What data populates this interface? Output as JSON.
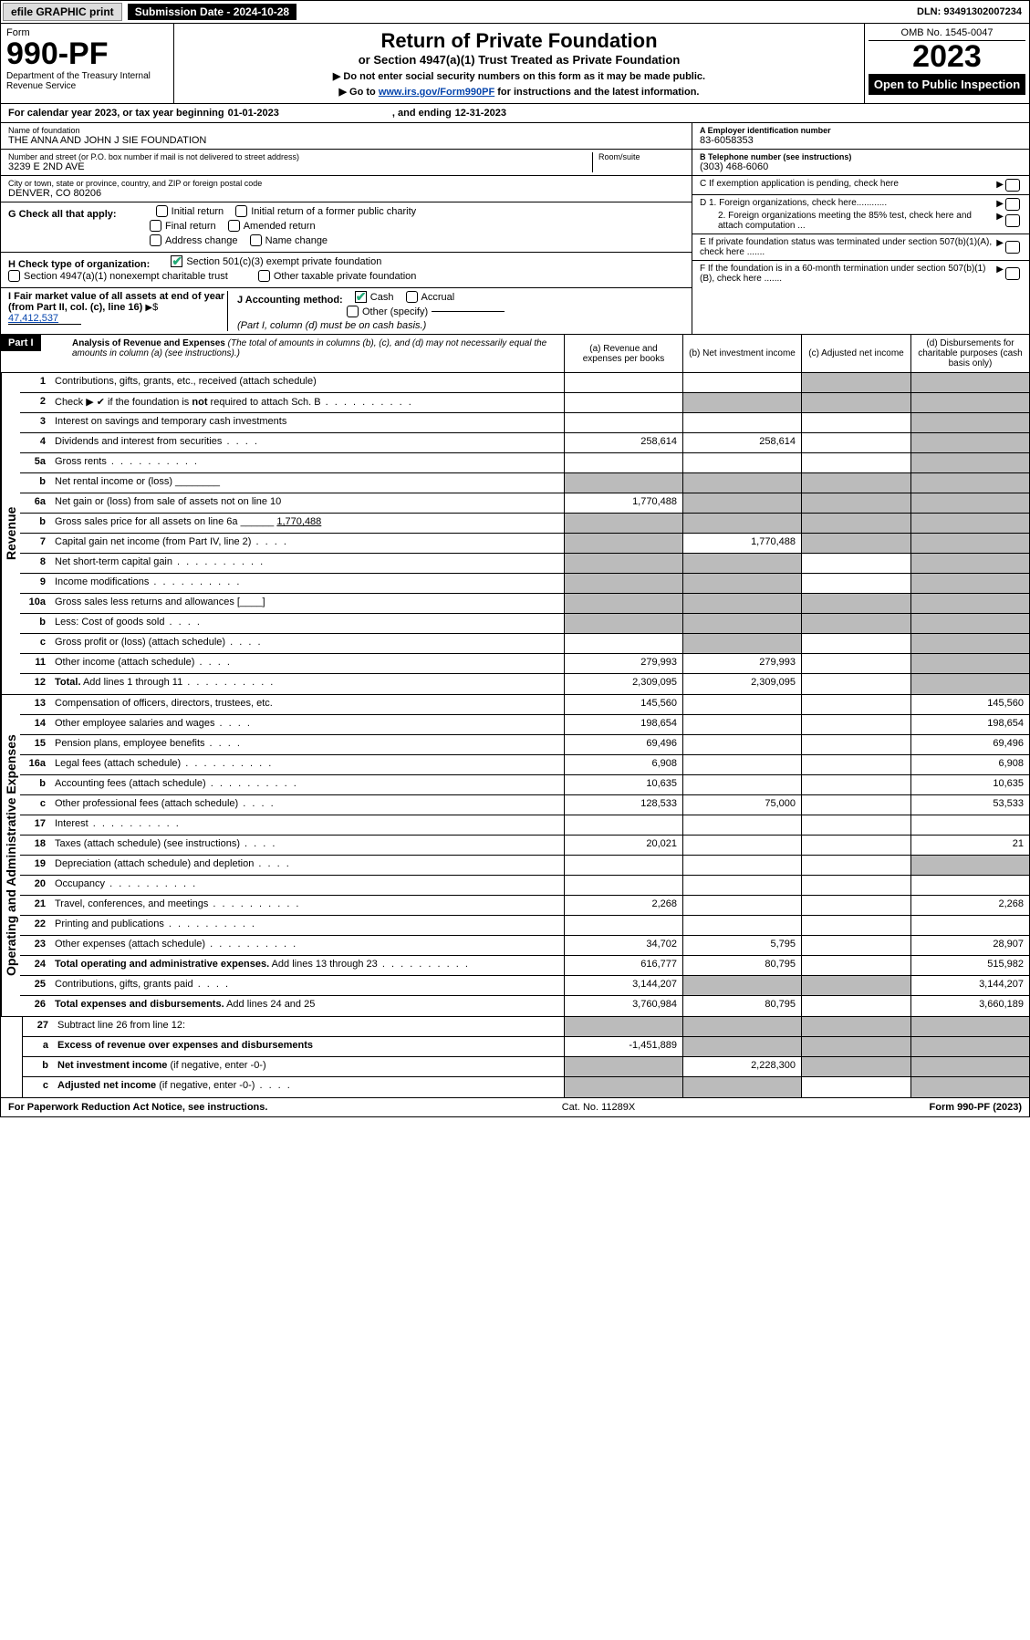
{
  "topbar": {
    "efile": "efile GRAPHIC print",
    "submission": "Submission Date - 2024-10-28",
    "dln": "DLN: 93491302007234"
  },
  "header": {
    "form": "Form",
    "number": "990-PF",
    "dept": "Department of the Treasury\nInternal Revenue Service",
    "title": "Return of Private Foundation",
    "subtitle1": "or Section 4947(a)(1) Trust Treated as Private Foundation",
    "subtitle2": "▶ Do not enter social security numbers on this form as it may be made public.",
    "subtitle3_pre": "▶ Go to ",
    "subtitle3_link": "www.irs.gov/Form990PF",
    "subtitle3_post": " for instructions and the latest information.",
    "omb": "OMB No. 1545-0047",
    "year": "2023",
    "open": "Open to Public Inspection"
  },
  "cal": {
    "pre": "For calendar year 2023, or tax year beginning ",
    "begin": "01-01-2023",
    "mid": ", and ending ",
    "end": "12-31-2023"
  },
  "foundation": {
    "name_lbl": "Name of foundation",
    "name": "THE ANNA AND JOHN J SIE FOUNDATION",
    "addr_lbl": "Number and street (or P.O. box number if mail is not delivered to street address)",
    "addr": "3239 E 2ND AVE",
    "room_lbl": "Room/suite",
    "city_lbl": "City or town, state or province, country, and ZIP or foreign postal code",
    "city": "DENVER, CO  80206",
    "ein_lbl": "A Employer identification number",
    "ein": "83-6058353",
    "tel_lbl": "B Telephone number (see instructions)",
    "tel": "(303) 468-6060",
    "c_lbl": "C If exemption application is pending, check here",
    "d1": "D 1. Foreign organizations, check here............",
    "d2": "2. Foreign organizations meeting the 85% test, check here and attach computation ...",
    "e": "E  If private foundation status was terminated under section 507(b)(1)(A), check here .......",
    "f": "F  If the foundation is in a 60-month termination under section 507(b)(1)(B), check here .......",
    "g_lbl": "G Check all that apply:",
    "g_opts": [
      "Initial return",
      "Initial return of a former public charity",
      "Final return",
      "Amended return",
      "Address change",
      "Name change"
    ],
    "h_lbl": "H Check type of organization:",
    "h1": "Section 501(c)(3) exempt private foundation",
    "h2": "Section 4947(a)(1) nonexempt charitable trust",
    "h3": "Other taxable private foundation",
    "i_lbl": "I Fair market value of all assets at end of year (from Part II, col. (c), line 16)",
    "i_val": "47,412,537",
    "j_lbl": "J Accounting method:",
    "j1": "Cash",
    "j2": "Accrual",
    "j3": "Other (specify)",
    "j_note": "(Part I, column (d) must be on cash basis.)"
  },
  "part1": {
    "label": "Part I",
    "title": "Analysis of Revenue and Expenses",
    "note": "(The total of amounts in columns (b), (c), and (d) may not necessarily equal the amounts in column (a) (see instructions).)",
    "cols": {
      "a": "(a)  Revenue and expenses per books",
      "b": "(b)  Net investment income",
      "c": "(c)  Adjusted net income",
      "d": "(d)  Disbursements for charitable purposes (cash basis only)"
    }
  },
  "sections": {
    "revenue": "Revenue",
    "expenses": "Operating and Administrative Expenses"
  },
  "rows": [
    {
      "n": "1",
      "t": "Contributions, gifts, grants, etc., received (attach schedule)",
      "a": "",
      "b": "",
      "c_grey": true,
      "d_grey": true
    },
    {
      "n": "2",
      "t": "Check ▶ ✔ if the foundation is <b>not</b> required to attach Sch. B",
      "dots": true,
      "a": "",
      "b_grey": true,
      "c_grey": true,
      "d_grey": true
    },
    {
      "n": "3",
      "t": "Interest on savings and temporary cash investments",
      "a": "",
      "b": "",
      "c": "",
      "d_grey": true
    },
    {
      "n": "4",
      "t": "Dividends and interest from securities",
      "dots": "s",
      "a": "258,614",
      "b": "258,614",
      "c": "",
      "d_grey": true
    },
    {
      "n": "5a",
      "t": "Gross rents",
      "dots": true,
      "a": "",
      "b": "",
      "c": "",
      "d_grey": true
    },
    {
      "n": "b",
      "t": "Net rental income or (loss) ________",
      "a_grey": true,
      "b_grey": true,
      "c_grey": true,
      "d_grey": true
    },
    {
      "n": "6a",
      "t": "Net gain or (loss) from sale of assets not on line 10",
      "a": "1,770,488",
      "b_grey": true,
      "c_grey": true,
      "d_grey": true
    },
    {
      "n": "b",
      "t": "Gross sales price for all assets on line 6a ______ <u>1,770,488</u>",
      "a_grey": true,
      "b_grey": true,
      "c_grey": true,
      "d_grey": true
    },
    {
      "n": "7",
      "t": "Capital gain net income (from Part IV, line 2)",
      "dots": "s",
      "a_grey": true,
      "b": "1,770,488",
      "c_grey": true,
      "d_grey": true
    },
    {
      "n": "8",
      "t": "Net short-term capital gain",
      "dots": true,
      "a_grey": true,
      "b_grey": true,
      "c": "",
      "d_grey": true
    },
    {
      "n": "9",
      "t": "Income modifications",
      "dots": true,
      "a_grey": true,
      "b_grey": true,
      "c": "",
      "d_grey": true
    },
    {
      "n": "10a",
      "t": "Gross sales less returns and allowances  [____]",
      "a_grey": true,
      "b_grey": true,
      "c_grey": true,
      "d_grey": true
    },
    {
      "n": "b",
      "t": "Less: Cost of goods sold",
      "dots": "s",
      "a_grey": true,
      "b_grey": true,
      "c_grey": true,
      "d_grey": true
    },
    {
      "n": "c",
      "t": "Gross profit or (loss) (attach schedule)",
      "dots": "s",
      "a": "",
      "b_grey": true,
      "c": "",
      "d_grey": true
    },
    {
      "n": "11",
      "t": "Other income (attach schedule)",
      "dots": "s",
      "a": "279,993",
      "b": "279,993",
      "c": "",
      "d_grey": true
    },
    {
      "n": "12",
      "t": "<b>Total.</b> Add lines 1 through 11",
      "dots": true,
      "a": "2,309,095",
      "b": "2,309,095",
      "c": "",
      "d_grey": true,
      "sec_end": "revenue"
    },
    {
      "n": "13",
      "t": "Compensation of officers, directors, trustees, etc.",
      "a": "145,560",
      "b": "",
      "c": "",
      "d": "145,560"
    },
    {
      "n": "14",
      "t": "Other employee salaries and wages",
      "dots": "s",
      "a": "198,654",
      "b": "",
      "c": "",
      "d": "198,654"
    },
    {
      "n": "15",
      "t": "Pension plans, employee benefits",
      "dots": "s",
      "a": "69,496",
      "b": "",
      "c": "",
      "d": "69,496"
    },
    {
      "n": "16a",
      "t": "Legal fees (attach schedule)",
      "dots": true,
      "a": "6,908",
      "b": "",
      "c": "",
      "d": "6,908"
    },
    {
      "n": "b",
      "t": "Accounting fees (attach schedule)",
      "dots": true,
      "a": "10,635",
      "b": "",
      "c": "",
      "d": "10,635"
    },
    {
      "n": "c",
      "t": "Other professional fees (attach schedule)",
      "dots": "s",
      "a": "128,533",
      "b": "75,000",
      "c": "",
      "d": "53,533"
    },
    {
      "n": "17",
      "t": "Interest",
      "dots": true,
      "a": "",
      "b": "",
      "c": "",
      "d": ""
    },
    {
      "n": "18",
      "t": "Taxes (attach schedule) (see instructions)",
      "dots": "s",
      "a": "20,021",
      "b": "",
      "c": "",
      "d": "21"
    },
    {
      "n": "19",
      "t": "Depreciation (attach schedule) and depletion",
      "dots": "s",
      "a": "",
      "b": "",
      "c": "",
      "d_grey": true
    },
    {
      "n": "20",
      "t": "Occupancy",
      "dots": true,
      "a": "",
      "b": "",
      "c": "",
      "d": ""
    },
    {
      "n": "21",
      "t": "Travel, conferences, and meetings",
      "dots": true,
      "a": "2,268",
      "b": "",
      "c": "",
      "d": "2,268"
    },
    {
      "n": "22",
      "t": "Printing and publications",
      "dots": true,
      "a": "",
      "b": "",
      "c": "",
      "d": ""
    },
    {
      "n": "23",
      "t": "Other expenses (attach schedule)",
      "dots": true,
      "a": "34,702",
      "b": "5,795",
      "c": "",
      "d": "28,907"
    },
    {
      "n": "24",
      "t": "<b>Total operating and administrative expenses.</b> Add lines 13 through 23",
      "dots": true,
      "a": "616,777",
      "b": "80,795",
      "c": "",
      "d": "515,982"
    },
    {
      "n": "25",
      "t": "Contributions, gifts, grants paid",
      "dots": "s",
      "a": "3,144,207",
      "b_grey": true,
      "c_grey": true,
      "d": "3,144,207"
    },
    {
      "n": "26",
      "t": "<b>Total expenses and disbursements.</b> Add lines 24 and 25",
      "a": "3,760,984",
      "b": "80,795",
      "c": "",
      "d": "3,660,189",
      "sec_end": "expenses"
    },
    {
      "n": "27",
      "t": "Subtract line 26 from line 12:",
      "a_grey": true,
      "b_grey": true,
      "c_grey": true,
      "d_grey": true
    },
    {
      "n": "a",
      "t": "<b>Excess of revenue over expenses and disbursements</b>",
      "a": "-1,451,889",
      "b_grey": true,
      "c_grey": true,
      "d_grey": true
    },
    {
      "n": "b",
      "t": "<b>Net investment income</b> (if negative, enter -0-)",
      "a_grey": true,
      "b": "2,228,300",
      "c_grey": true,
      "d_grey": true
    },
    {
      "n": "c",
      "t": "<b>Adjusted net income</b> (if negative, enter -0-)",
      "dots": "s",
      "a_grey": true,
      "b_grey": true,
      "c": "",
      "d_grey": true
    }
  ],
  "footer": {
    "left": "For Paperwork Reduction Act Notice, see instructions.",
    "mid": "Cat. No. 11289X",
    "right": "Form 990-PF (2023)"
  }
}
